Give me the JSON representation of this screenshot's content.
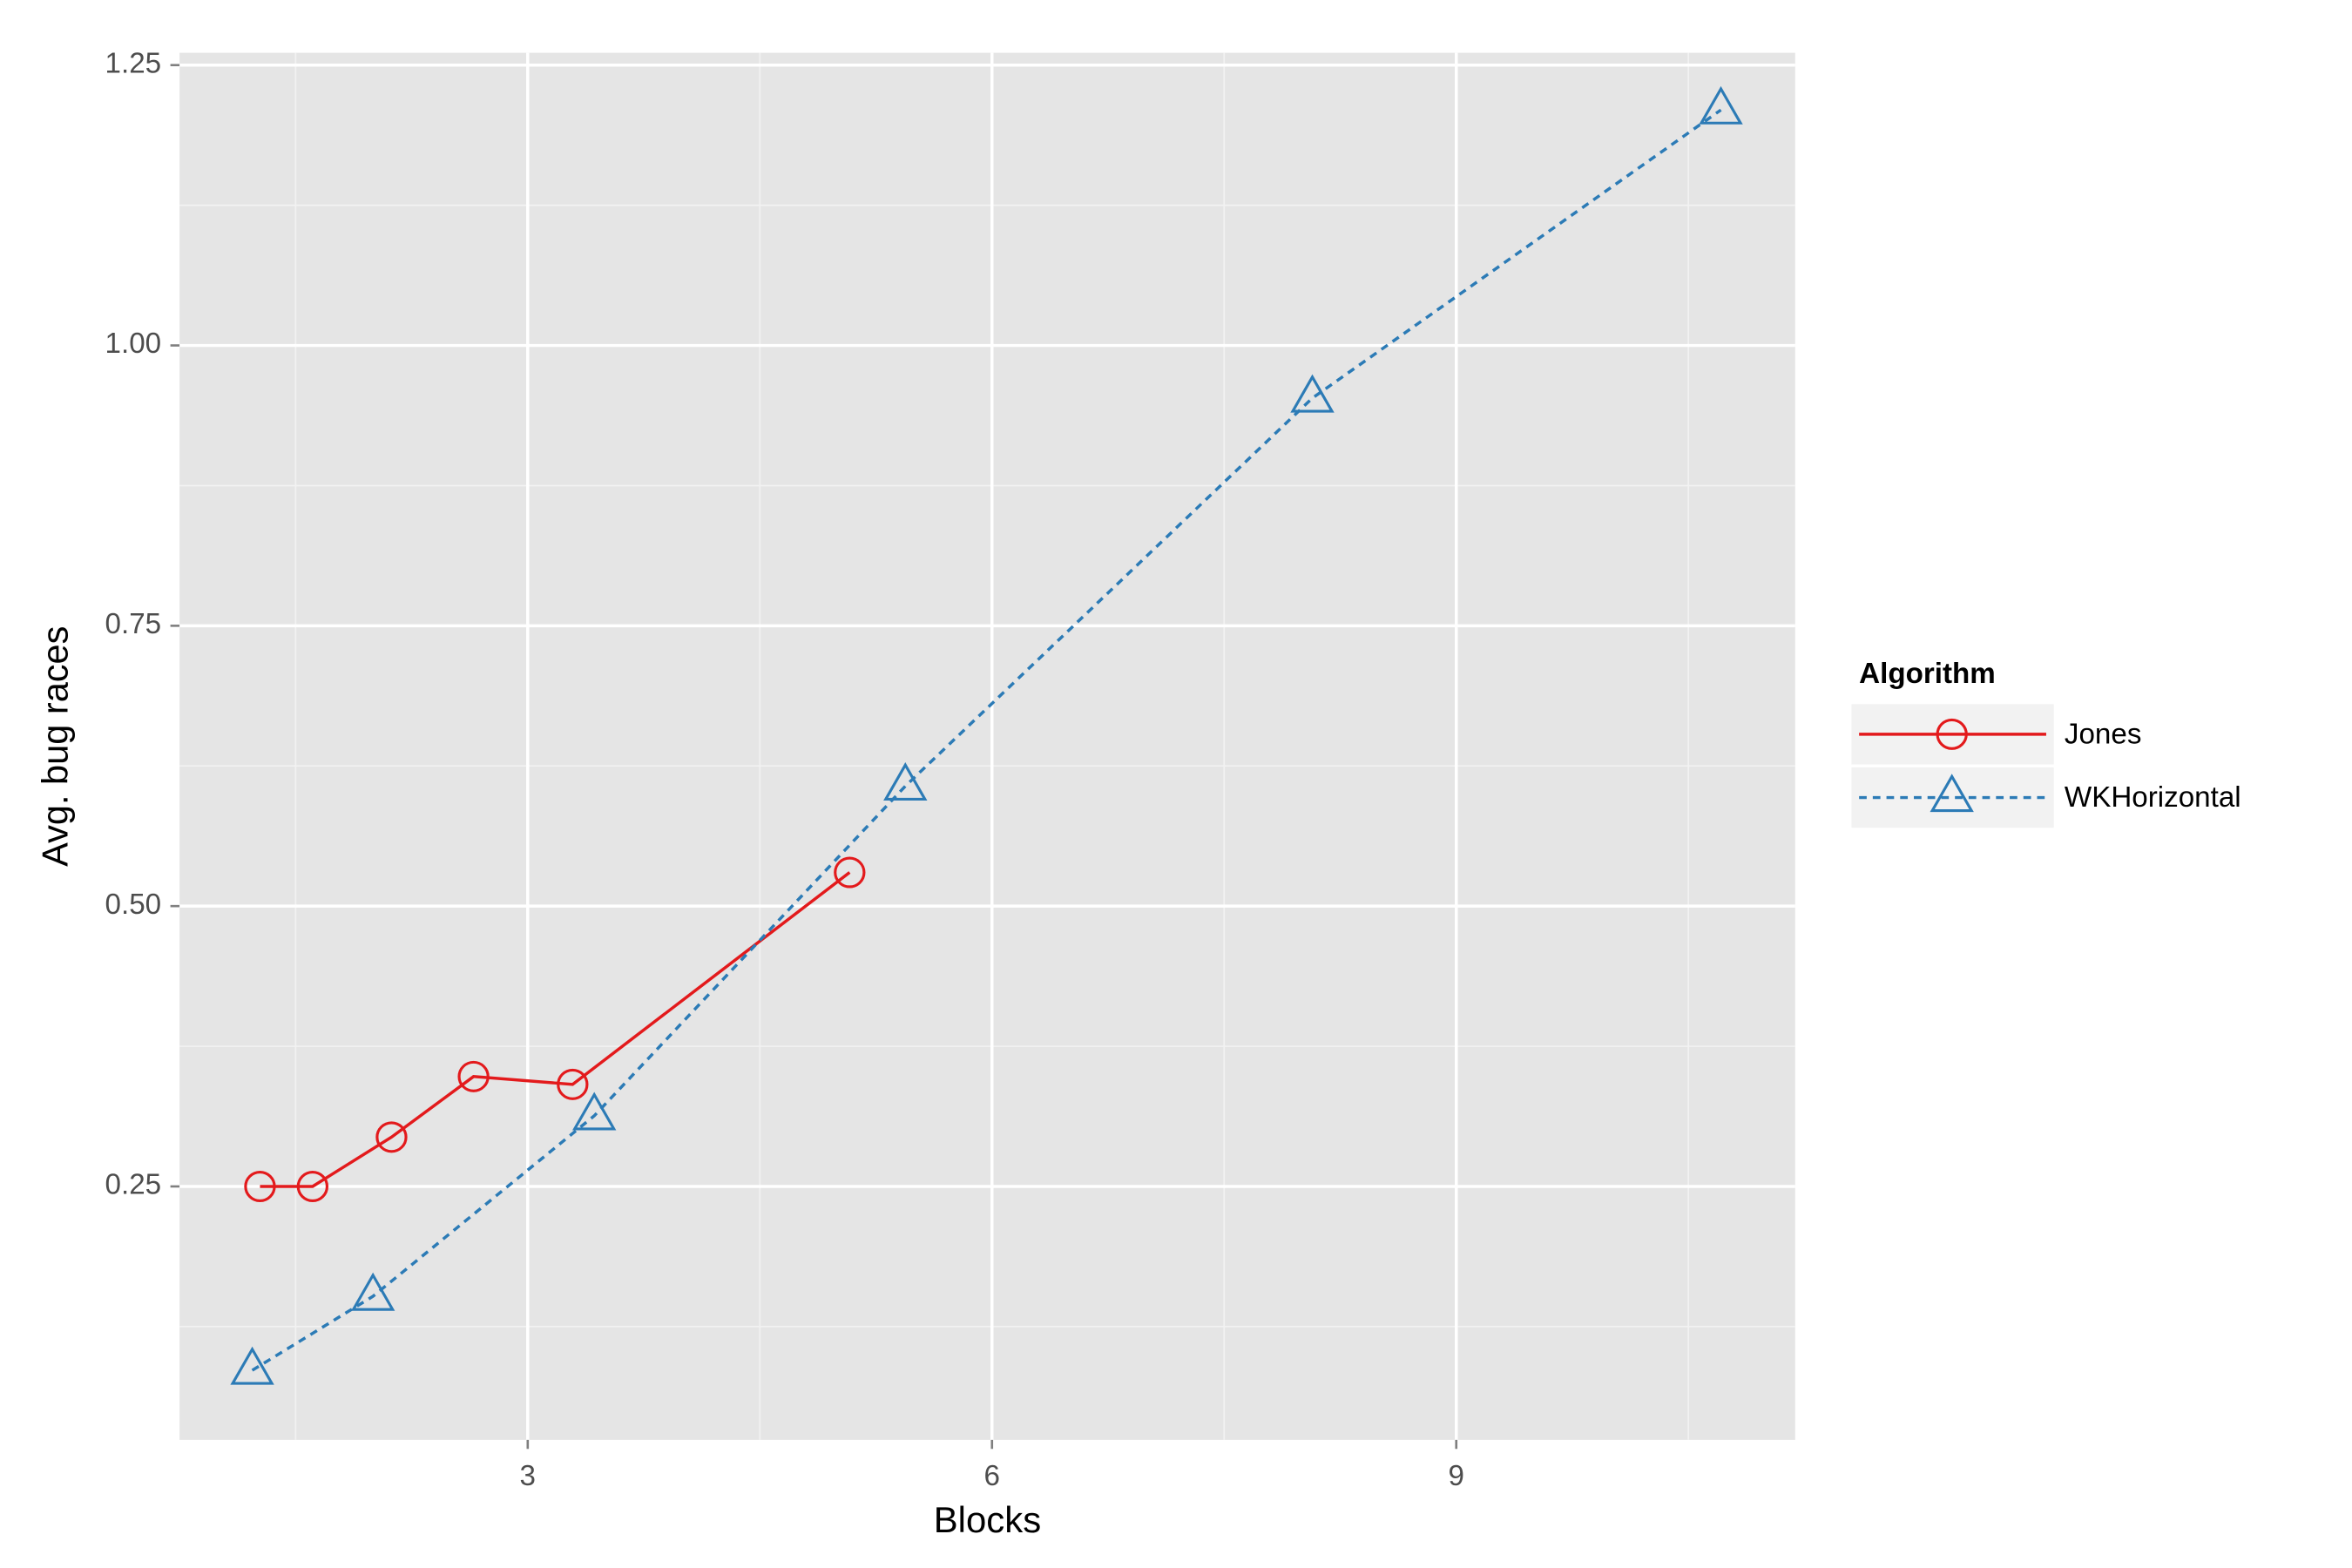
{
  "chart_data": {
    "type": "line",
    "x_label": "Blocks",
    "y_label": "Avg. bug races",
    "legend_title": "Algorithm",
    "legend": "right",
    "xlim": [
      0.75,
      11.19
    ],
    "ylim": [
      0.024,
      1.261
    ],
    "xticks": [
      3,
      6,
      9
    ],
    "yticks": [
      0.25,
      {
        "value": 0.5,
        "label": "0.50"
      },
      0.75,
      {
        "value": 1,
        "label": "1.00"
      },
      1.25
    ],
    "x_minor_ticks": [
      1.5,
      4.5,
      7.5,
      10.5
    ],
    "y_minor_ticks": [
      0.125,
      0.375,
      0.625,
      0.875,
      1.125
    ],
    "grid": true,
    "series": [
      {
        "name": "Jones",
        "color": "#e31a1c",
        "dash": "solid",
        "marker": "circle",
        "x": [
          1.27,
          1.61,
          2.12,
          2.65,
          3.29,
          5.08
        ],
        "values": [
          0.25,
          0.25,
          0.294,
          0.348,
          0.341,
          0.53
        ]
      },
      {
        "name": "WKHorizontal",
        "color": "#2c7bb6",
        "dash": "dashed",
        "marker": "triangle",
        "x": [
          1.22,
          2.0,
          3.43,
          5.44,
          8.07,
          10.71
        ],
        "values": [
          0.086,
          0.152,
          0.313,
          0.607,
          0.953,
          1.21
        ]
      }
    ]
  }
}
